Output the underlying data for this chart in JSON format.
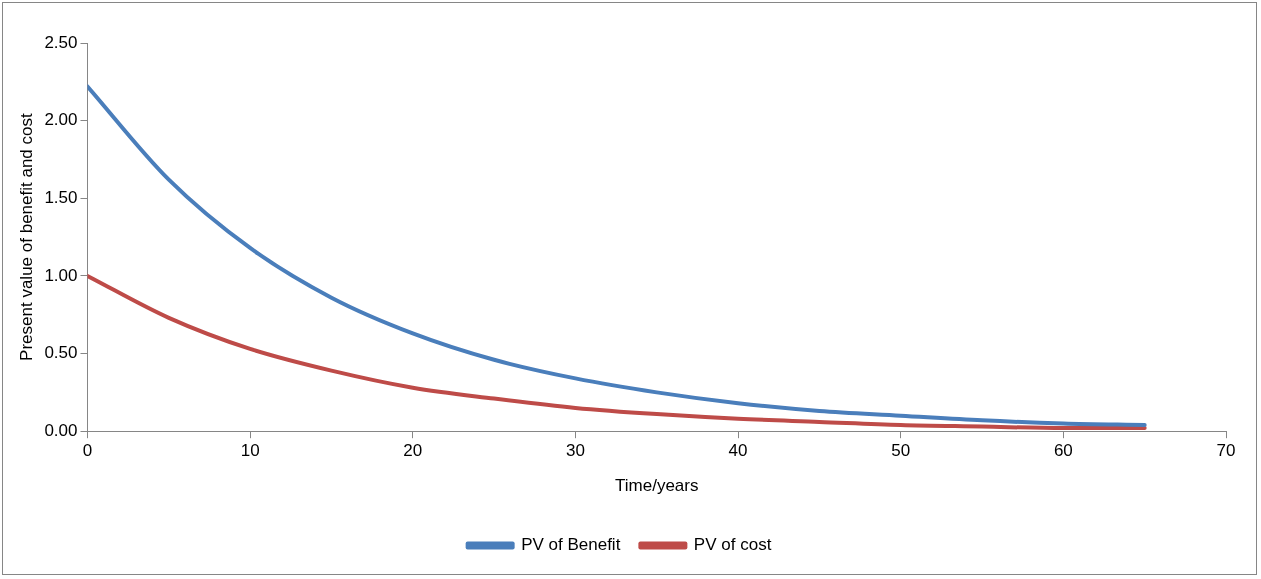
{
  "chart_data": {
    "type": "line",
    "xlabel": "Time/years",
    "ylabel": "Present value of benefit and cost",
    "x": [
      0,
      5,
      10,
      15,
      20,
      25,
      30,
      35,
      40,
      45,
      50,
      55,
      60,
      65
    ],
    "series": [
      {
        "name": "PV of Benefit",
        "color": "#4a7ebb",
        "values": [
          2.22,
          1.62,
          1.18,
          0.86,
          0.63,
          0.46,
          0.34,
          0.25,
          0.18,
          0.13,
          0.1,
          0.07,
          0.05,
          0.04
        ]
      },
      {
        "name": "PV of cost",
        "color": "#be4b48",
        "values": [
          1.0,
          0.73,
          0.53,
          0.39,
          0.28,
          0.21,
          0.15,
          0.11,
          0.08,
          0.06,
          0.04,
          0.03,
          0.02,
          0.02
        ]
      }
    ],
    "xlim": [
      0,
      70
    ],
    "xticks": [
      0,
      10,
      20,
      30,
      40,
      50,
      60,
      70
    ],
    "ylim": [
      0,
      2.5
    ],
    "yticks": [
      {
        "value": 0,
        "label": "0.00"
      },
      {
        "value": 0.5,
        "label": "0.50"
      },
      {
        "value": 1,
        "label": "1.00"
      },
      {
        "value": 1.5,
        "label": "1.50"
      },
      {
        "value": 2,
        "label": "2.00"
      },
      {
        "value": 2.5,
        "label": "2.50"
      }
    ],
    "grid": false,
    "legend": "bottom",
    "marker": "none",
    "line_style": "solid"
  }
}
